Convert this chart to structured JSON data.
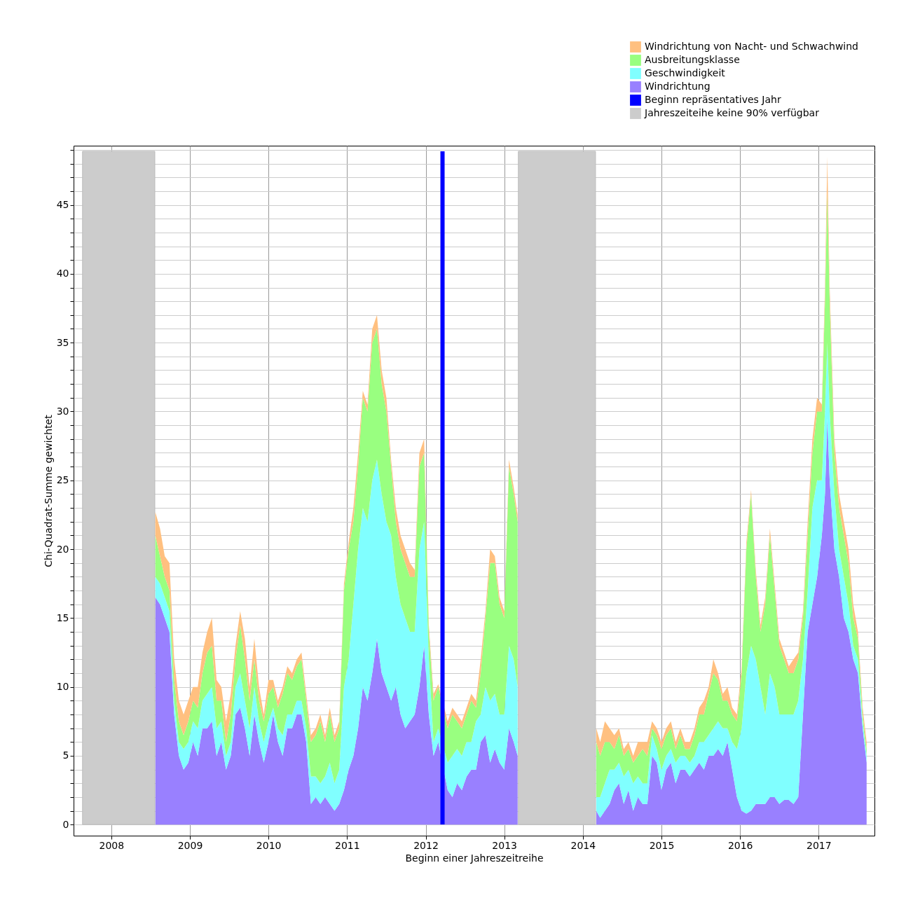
{
  "chart_data": {
    "type": "area",
    "stacked": true,
    "xlabel": "Beginn einer Jahreszeitreihe",
    "ylabel": "Chi-Quadrat-Summe gewichtet",
    "x": [
      2008.56,
      2008.62,
      2008.68,
      2008.74,
      2008.8,
      2008.86,
      2008.92,
      2008.98,
      2009.04,
      2009.1,
      2009.16,
      2009.22,
      2009.28,
      2009.34,
      2009.4,
      2009.46,
      2009.52,
      2009.58,
      2009.64,
      2009.7,
      2009.76,
      2009.82,
      2009.88,
      2009.94,
      2010.0,
      2010.06,
      2010.12,
      2010.18,
      2010.24,
      2010.3,
      2010.36,
      2010.42,
      2010.48,
      2010.54,
      2010.6,
      2010.66,
      2010.72,
      2010.78,
      2010.84,
      2010.9,
      2010.96,
      2011.02,
      2011.08,
      2011.14,
      2011.2,
      2011.26,
      2011.32,
      2011.38,
      2011.44,
      2011.5,
      2011.56,
      2011.62,
      2011.68,
      2011.74,
      2011.8,
      2011.86,
      2011.92,
      2011.98,
      2012.04,
      2012.1,
      2012.16,
      2012.28,
      2012.34,
      2012.4,
      2012.46,
      2012.52,
      2012.58,
      2012.64,
      2012.7,
      2012.76,
      2012.82,
      2012.88,
      2012.94,
      2013.0,
      2013.06,
      2013.12,
      2013.17,
      2013.67,
      2014.17,
      2014.22,
      2014.28,
      2014.34,
      2014.4,
      2014.46,
      2014.52,
      2014.58,
      2014.64,
      2014.7,
      2014.76,
      2014.82,
      2014.88,
      2014.94,
      2015.0,
      2015.06,
      2015.12,
      2015.18,
      2015.24,
      2015.3,
      2015.36,
      2015.42,
      2015.48,
      2015.54,
      2015.6,
      2015.66,
      2015.72,
      2015.78,
      2015.84,
      2015.9,
      2015.96,
      2016.02,
      2016.08,
      2016.14,
      2016.2,
      2016.26,
      2016.32,
      2016.38,
      2016.44,
      2016.5,
      2016.56,
      2016.62,
      2016.68,
      2016.74,
      2016.8,
      2016.86,
      2016.92,
      2016.98,
      2017.04,
      2017.08,
      2017.11,
      2017.14,
      2017.2,
      2017.26,
      2017.32,
      2017.38,
      2017.44,
      2017.5,
      2017.56,
      2017.61
    ],
    "series": [
      {
        "name": "Windrichtung",
        "color": "#9980ff",
        "values": [
          16.5,
          16,
          15,
          14,
          8,
          5,
          4,
          4.5,
          6,
          5,
          7,
          7,
          7.5,
          5,
          6,
          4,
          5,
          8,
          8.5,
          7,
          5,
          8,
          6,
          4.5,
          6,
          8,
          6,
          5,
          7,
          7,
          8,
          8,
          6,
          1.5,
          2,
          1.5,
          2,
          1.5,
          1,
          1.5,
          2.5,
          4,
          5,
          7,
          10,
          9,
          11,
          13.5,
          11,
          10,
          9,
          10,
          8,
          7,
          7.5,
          8,
          10,
          13,
          8,
          5,
          6,
          2.5,
          2,
          3,
          2.5,
          3.5,
          4,
          4,
          6,
          6.5,
          4.5,
          5.5,
          4.5,
          4,
          7,
          6,
          5,
          null,
          1,
          0.5,
          1,
          1.5,
          2.5,
          3,
          1.5,
          2.5,
          1,
          2,
          1.5,
          1.5,
          5,
          4.5,
          2.5,
          4,
          4.5,
          3,
          4,
          4,
          3.5,
          4,
          4.5,
          4,
          5,
          5,
          5.5,
          5,
          6,
          4,
          2,
          1,
          0.8,
          1,
          1.5,
          1.5,
          1.5,
          2,
          2,
          1.5,
          1.8,
          1.8,
          1.5,
          2,
          8,
          14,
          16,
          18,
          21,
          24,
          29.5,
          25,
          20,
          18,
          15,
          14,
          12,
          11,
          7,
          4.5
        ]
      },
      {
        "name": "Geschwindigkeit",
        "color": "#80ffff",
        "values": [
          1.5,
          1.5,
          1.5,
          1.5,
          1,
          1,
          1.5,
          1.5,
          1.5,
          2,
          2,
          2.5,
          2.5,
          2,
          1.5,
          1,
          1,
          2,
          2.5,
          2,
          2,
          2,
          1.5,
          1.5,
          1.5,
          0.5,
          1,
          1.5,
          1,
          1,
          1,
          1,
          1,
          2,
          1.5,
          1.5,
          1.5,
          3,
          2,
          2.5,
          7.5,
          8,
          11,
          13,
          13,
          13,
          14,
          13,
          13,
          12,
          12,
          8,
          8,
          8,
          6.5,
          6,
          10,
          9,
          4,
          1,
          1,
          2,
          3,
          2.5,
          2.5,
          2.5,
          2,
          3.5,
          2,
          3.5,
          4.5,
          4,
          3.5,
          4,
          6,
          6,
          5,
          null,
          1,
          1.5,
          2,
          2.5,
          1.5,
          1.5,
          2,
          1.5,
          2,
          1.5,
          1.5,
          1.5,
          1.5,
          1,
          1.5,
          1,
          1,
          1.5,
          1,
          1,
          1,
          1,
          1.5,
          2,
          1.5,
          2,
          2,
          2,
          1,
          2,
          3.5,
          6,
          10.2,
          12,
          10.5,
          8.5,
          6.5,
          9,
          8,
          6.5,
          6.2,
          6.2,
          6.5,
          7,
          4,
          3,
          7,
          7,
          4,
          6,
          5.5,
          5,
          4,
          2,
          3,
          2,
          1,
          1,
          0.5,
          0.5
        ]
      },
      {
        "name": "Ausbreitungsklasse",
        "color": "#99ff80",
        "values": [
          3,
          2,
          1.5,
          1.5,
          1.5,
          1.5,
          1,
          1.5,
          1.5,
          1.5,
          2,
          3,
          3,
          2,
          1.5,
          1,
          2,
          2,
          3.5,
          3,
          2,
          2,
          1.5,
          1.5,
          2,
          1.5,
          1.5,
          3,
          3,
          2.5,
          2.5,
          3,
          2,
          2.5,
          3,
          4.5,
          2.5,
          3.5,
          3,
          3,
          7,
          8,
          6,
          6,
          8,
          8,
          10,
          9.5,
          8,
          8,
          5,
          4,
          4,
          4,
          4,
          4,
          6,
          5,
          2,
          3,
          3,
          2.5,
          3,
          2,
          2,
          2,
          3,
          1,
          3,
          5,
          10,
          9.5,
          8,
          7,
          13,
          12,
          12,
          null,
          4,
          3,
          3,
          2,
          1.5,
          2,
          1.5,
          1.5,
          1.5,
          1.5,
          2.5,
          2,
          0.5,
          1,
          1.5,
          1.5,
          1.5,
          1,
          1.5,
          0.5,
          1,
          1.5,
          2,
          2,
          3,
          4,
          3,
          2,
          2,
          2,
          2,
          4,
          9,
          11,
          6,
          4,
          8,
          10,
          7,
          5,
          4,
          3,
          3,
          3,
          3,
          4,
          4,
          5,
          5,
          8,
          11,
          8,
          3,
          3,
          3,
          3,
          2,
          1.5,
          0.5,
          0.5
        ]
      },
      {
        "name": "Windrichtung von Nacht- und Schwachwind",
        "color": "#ffc080",
        "values": [
          1.7,
          2,
          1.5,
          2,
          1.5,
          1.5,
          1.5,
          1.5,
          1,
          1.5,
          1.5,
          1.5,
          2,
          1.5,
          1,
          1.5,
          1.5,
          1,
          1,
          1.5,
          1,
          1.5,
          1,
          0.5,
          1,
          0.5,
          0.5,
          0.5,
          0.5,
          0.5,
          0.5,
          0.5,
          0.5,
          0.5,
          0.5,
          0.5,
          0.5,
          0.5,
          0.5,
          0.5,
          0.5,
          0.5,
          1,
          1,
          0.5,
          0.5,
          1,
          1,
          1,
          1,
          0.5,
          1,
          1,
          1,
          1,
          0.5,
          1,
          1,
          0.5,
          0.5,
          0.2,
          0.5,
          0.5,
          0.5,
          0.5,
          0.5,
          0.5,
          0.5,
          1,
          0.5,
          1,
          0.5,
          0.5,
          0.5,
          0.5,
          0.5,
          0.5,
          null,
          1,
          1,
          1.5,
          1,
          1,
          0.5,
          0.5,
          0.5,
          0.5,
          1,
          0.5,
          1,
          0.5,
          0.5,
          0.5,
          0.5,
          0.5,
          0.5,
          0.5,
          0.5,
          0.5,
          0.5,
          0.5,
          1,
          0.5,
          1,
          0.5,
          0.5,
          1,
          0.5,
          0.5,
          0.5,
          0.5,
          0.3,
          0.5,
          0.5,
          0.5,
          0.5,
          0.5,
          0.5,
          0.5,
          0.5,
          1,
          0.5,
          0.5,
          1,
          1,
          1,
          0.5,
          1,
          2.5,
          1,
          1,
          1,
          1,
          1,
          1,
          0.5,
          0.5,
          0.5
        ]
      }
    ],
    "xlim": [
      2007.52,
      2017.71
    ],
    "xticks": [
      2008,
      2009,
      2010,
      2011,
      2012,
      2013,
      2014,
      2015,
      2016,
      2017
    ],
    "ylim": [
      -0.8,
      49.3
    ],
    "yticks": [
      0,
      {
        "value": 1,
        "label": null
      },
      {
        "value": 2,
        "label": null
      },
      {
        "value": 3,
        "label": null
      },
      {
        "value": 4,
        "label": null
      },
      5,
      {
        "value": 6,
        "label": null
      },
      {
        "value": 7,
        "label": null
      },
      {
        "value": 8,
        "label": null
      },
      {
        "value": 9,
        "label": null
      },
      10,
      {
        "value": 11,
        "label": null
      },
      {
        "value": 12,
        "label": null
      },
      {
        "value": 13,
        "label": null
      },
      {
        "value": 14,
        "label": null
      },
      15,
      {
        "value": 16,
        "label": null
      },
      {
        "value": 17,
        "label": null
      },
      {
        "value": 18,
        "label": null
      },
      {
        "value": 19,
        "label": null
      },
      20,
      {
        "value": 21,
        "label": null
      },
      {
        "value": 22,
        "label": null
      },
      {
        "value": 23,
        "label": null
      },
      {
        "value": 24,
        "label": null
      },
      25,
      {
        "value": 26,
        "label": null
      },
      {
        "value": 27,
        "label": null
      },
      {
        "value": 28,
        "label": null
      },
      {
        "value": 29,
        "label": null
      },
      30,
      {
        "value": 31,
        "label": null
      },
      {
        "value": 32,
        "label": null
      },
      {
        "value": 33,
        "label": null
      },
      {
        "value": 34,
        "label": null
      },
      35,
      {
        "value": 36,
        "label": null
      },
      {
        "value": 37,
        "label": null
      },
      {
        "value": 38,
        "label": null
      },
      {
        "value": 39,
        "label": null
      },
      40,
      {
        "value": 41,
        "label": null
      },
      {
        "value": 42,
        "label": null
      },
      {
        "value": 43,
        "label": null
      },
      {
        "value": 44,
        "label": null
      },
      45,
      {
        "value": 46,
        "label": null
      },
      {
        "value": 47,
        "label": null
      },
      {
        "value": 48,
        "label": null
      },
      {
        "value": 49,
        "label": null
      }
    ],
    "ref_lines": [
      {
        "axis": "x",
        "value": 2012.214,
        "label": "Beginn repräsentatives Jahr",
        "color": "#0000ff"
      }
    ],
    "bands": [
      {
        "axis": "x",
        "from": 2007.634,
        "to": 2008.554,
        "label": "Jahreszeiteihe keine 90% verfügbar",
        "color": "#cccccc"
      },
      {
        "axis": "x",
        "from": 2013.179,
        "to": 2014.161,
        "color": "#cccccc"
      }
    ],
    "grid": true,
    "legend": "top right"
  }
}
